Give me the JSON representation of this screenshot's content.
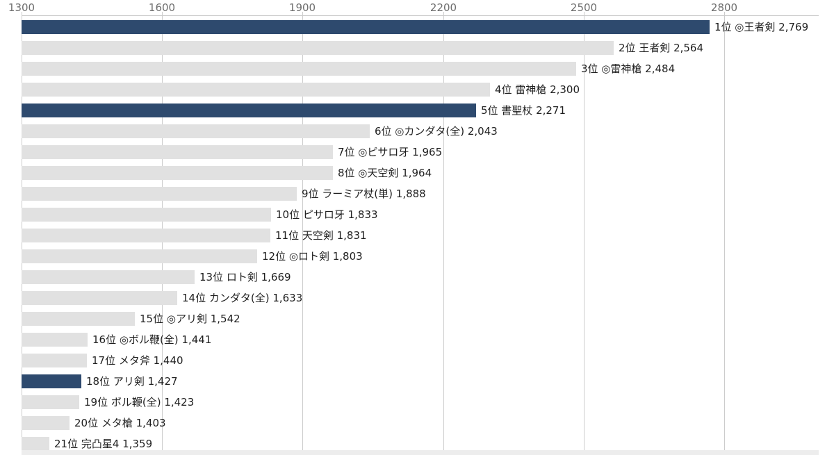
{
  "chart_data": {
    "type": "bar",
    "orientation": "horizontal",
    "title": "",
    "xlabel": "",
    "ylabel": "",
    "axis": {
      "position": "top",
      "min": 1300,
      "max": 2800,
      "tick_values": [
        1300,
        1600,
        1900,
        2200,
        2500,
        2800
      ],
      "tick_labels": [
        "1300",
        "1600",
        "1900",
        "2200",
        "2500",
        "2800"
      ],
      "grid": true
    },
    "bars": [
      {
        "rank": "1位",
        "name": "◎王者剣",
        "value": 2769,
        "value_display": "2,769",
        "highlighted": true
      },
      {
        "rank": "2位",
        "name": "王者剣",
        "value": 2564,
        "value_display": "2,564",
        "highlighted": false
      },
      {
        "rank": "3位",
        "name": "◎雷神槍",
        "value": 2484,
        "value_display": "2,484",
        "highlighted": false
      },
      {
        "rank": "4位",
        "name": "雷神槍",
        "value": 2300,
        "value_display": "2,300",
        "highlighted": false
      },
      {
        "rank": "5位",
        "name": "書聖杖",
        "value": 2271,
        "value_display": "2,271",
        "highlighted": true
      },
      {
        "rank": "6位",
        "name": "◎カンダタ(全)",
        "value": 2043,
        "value_display": "2,043",
        "highlighted": false
      },
      {
        "rank": "7位",
        "name": "◎ピサロ牙",
        "value": 1965,
        "value_display": "1,965",
        "highlighted": false
      },
      {
        "rank": "8位",
        "name": "◎天空剣",
        "value": 1964,
        "value_display": "1,964",
        "highlighted": false
      },
      {
        "rank": "9位",
        "name": "ラーミア杖(単)",
        "value": 1888,
        "value_display": "1,888",
        "highlighted": false
      },
      {
        "rank": "10位",
        "name": "ピサロ牙",
        "value": 1833,
        "value_display": "1,833",
        "highlighted": false
      },
      {
        "rank": "11位",
        "name": "天空剣",
        "value": 1831,
        "value_display": "1,831",
        "highlighted": false
      },
      {
        "rank": "12位",
        "name": "◎ロト剣",
        "value": 1803,
        "value_display": "1,803",
        "highlighted": false
      },
      {
        "rank": "13位",
        "name": "ロト剣",
        "value": 1669,
        "value_display": "1,669",
        "highlighted": false
      },
      {
        "rank": "14位",
        "name": "カンダタ(全)",
        "value": 1633,
        "value_display": "1,633",
        "highlighted": false
      },
      {
        "rank": "15位",
        "name": "◎アリ剣",
        "value": 1542,
        "value_display": "1,542",
        "highlighted": false
      },
      {
        "rank": "16位",
        "name": "◎ボル鞭(全)",
        "value": 1441,
        "value_display": "1,441",
        "highlighted": false
      },
      {
        "rank": "17位",
        "name": "メタ斧",
        "value": 1440,
        "value_display": "1,440",
        "highlighted": false
      },
      {
        "rank": "18位",
        "name": "アリ剣",
        "value": 1427,
        "value_display": "1,427",
        "highlighted": true
      },
      {
        "rank": "19位",
        "name": "ボル鞭(全)",
        "value": 1423,
        "value_display": "1,423",
        "highlighted": false
      },
      {
        "rank": "20位",
        "name": "メタ槍",
        "value": 1403,
        "value_display": "1,403",
        "highlighted": false
      },
      {
        "rank": "21位",
        "name": "完凸星4",
        "value": 1359,
        "value_display": "1,359",
        "highlighted": false
      }
    ],
    "colors": {
      "bar_highlight": "#2e4a6e",
      "bar_default": "#e1e1e1",
      "gridline": "#cccccc",
      "axis_label": "#6e6e6e",
      "bar_label": "#1f1f1f",
      "bottom_band": "#ededed",
      "background": "#ffffff"
    },
    "legend": null
  }
}
